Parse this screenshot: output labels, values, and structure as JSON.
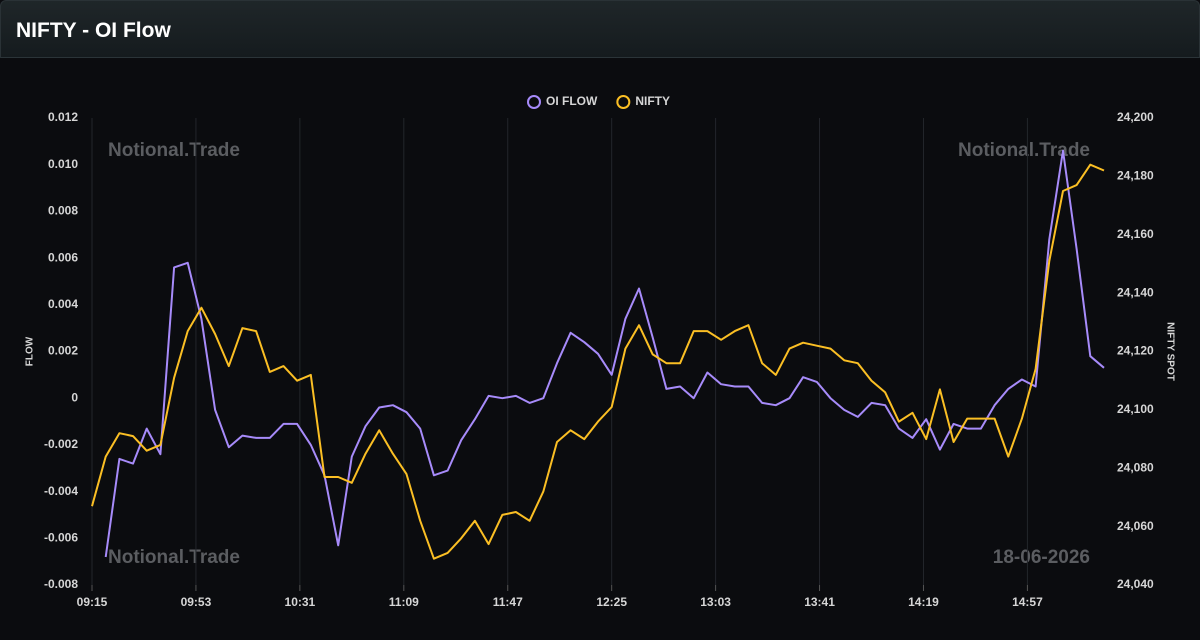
{
  "header": {
    "title": "NIFTY - OI Flow"
  },
  "chart_data": {
    "type": "line",
    "watermarks": [
      "Notional.Trade",
      "Notional.Trade",
      "Notional.Trade"
    ],
    "date_label": "18-06-2026",
    "ylabel": "FLOW",
    "y2label": "NIFTY SPOT",
    "x": [
      "09:15",
      "09:20",
      "09:25",
      "09:30",
      "09:35",
      "09:40",
      "09:45",
      "09:50",
      "09:55",
      "10:00",
      "10:05",
      "10:10",
      "10:15",
      "10:20",
      "10:25",
      "10:30",
      "10:35",
      "10:40",
      "10:45",
      "10:50",
      "10:55",
      "11:00",
      "11:05",
      "11:10",
      "11:15",
      "11:20",
      "11:25",
      "11:30",
      "11:35",
      "11:40",
      "11:45",
      "11:50",
      "11:55",
      "12:00",
      "12:05",
      "12:10",
      "12:15",
      "12:20",
      "12:25",
      "12:30",
      "12:35",
      "12:40",
      "12:45",
      "12:50",
      "12:55",
      "13:00",
      "13:05",
      "13:10",
      "13:15",
      "13:20",
      "13:25",
      "13:30",
      "13:35",
      "13:40",
      "13:45",
      "13:50",
      "13:55",
      "14:00",
      "14:05",
      "14:10",
      "14:15",
      "14:20",
      "14:25",
      "14:30",
      "14:35",
      "14:40",
      "14:45",
      "14:50",
      "14:55",
      "15:00",
      "15:05",
      "15:10",
      "15:15",
      "15:20",
      "15:25"
    ],
    "xlim": [
      "09:15",
      "15:25"
    ],
    "xticks": [
      "09:15",
      "09:53",
      "10:31",
      "11:09",
      "11:47",
      "12:25",
      "13:03",
      "13:41",
      "14:19",
      "14:57"
    ],
    "ylim": [
      -0.008,
      0.012
    ],
    "yticks": [
      -0.008,
      -0.006,
      -0.004,
      -0.002,
      0,
      0.002,
      0.004,
      0.006,
      0.008,
      {
        "value": 0.01,
        "label": "0.010"
      },
      0.012
    ],
    "y2lim": [
      24040,
      24200
    ],
    "y2ticks": [
      {
        "value": 24040,
        "label": "24,040"
      },
      {
        "value": 24060,
        "label": "24,060"
      },
      {
        "value": 24080,
        "label": "24,080"
      },
      {
        "value": 24100,
        "label": "24,100"
      },
      {
        "value": 24120,
        "label": "24,120"
      },
      {
        "value": 24140,
        "label": "24,140"
      },
      {
        "value": 24160,
        "label": "24,160"
      },
      {
        "value": 24180,
        "label": "24,180"
      },
      {
        "value": 24200,
        "label": "24,200"
      }
    ],
    "grid": true,
    "legend": "top",
    "series": [
      {
        "name": "OI FLOW",
        "color": "#a78bfa",
        "values": [
          null,
          -0.0068,
          -0.0026,
          -0.0028,
          -0.0013,
          -0.0024,
          0.0056,
          0.0058,
          0.0034,
          -0.0005,
          -0.0021,
          -0.0016,
          -0.0017,
          -0.0017,
          -0.0011,
          -0.0011,
          -0.002,
          -0.0033,
          -0.0063,
          -0.0025,
          -0.0012,
          -0.0004,
          -0.0003,
          -0.0006,
          -0.0013,
          -0.0033,
          -0.0031,
          -0.0018,
          -0.0009,
          0.0001,
          0,
          0.0001,
          -0.0002,
          0,
          0.0015,
          0.0028,
          0.0024,
          0.0019,
          0.001,
          0.0034,
          0.0047,
          0.0026,
          0.0004,
          0.0005,
          0,
          0.0011,
          0.0006,
          0.0005,
          0.0005,
          -0.0002,
          -0.0003,
          0,
          0.0009,
          0.0007,
          0,
          -0.0005,
          -0.0008,
          -0.0002,
          -0.0003,
          -0.0013,
          -0.0017,
          -0.0009,
          -0.0022,
          -0.0011,
          -0.0013,
          -0.0013,
          -0.0003,
          0.0004,
          0.0008,
          0.0005,
          0.0068,
          0.0106,
          0.0064,
          0.0018,
          0.0013
        ]
      },
      {
        "name": "NIFTY",
        "color": "#fbbf24",
        "axis": "y2",
        "values": [
          24067,
          24084,
          24092,
          24091,
          24086,
          24088,
          24111,
          24127,
          24135,
          24126,
          24115,
          24128,
          24127,
          24113,
          24115,
          24110,
          24112,
          24077,
          24077,
          24075,
          24085,
          24093,
          24085,
          24078,
          24062,
          24049,
          24051,
          24056,
          24062,
          24054,
          24064,
          24065,
          24062,
          24072,
          24089,
          24093,
          24090,
          24096,
          24101,
          24121,
          24129,
          24119,
          24116,
          24116,
          24127,
          24127,
          24124,
          24127,
          24129,
          24116,
          24112,
          24121,
          24123,
          24122,
          24121,
          24117,
          24116,
          24110,
          24106,
          24096,
          24099,
          24090,
          24107,
          24089,
          24097,
          24097,
          24097,
          24084,
          24097,
          24114,
          24151,
          24175,
          24177,
          24184,
          24182
        ]
      }
    ]
  }
}
